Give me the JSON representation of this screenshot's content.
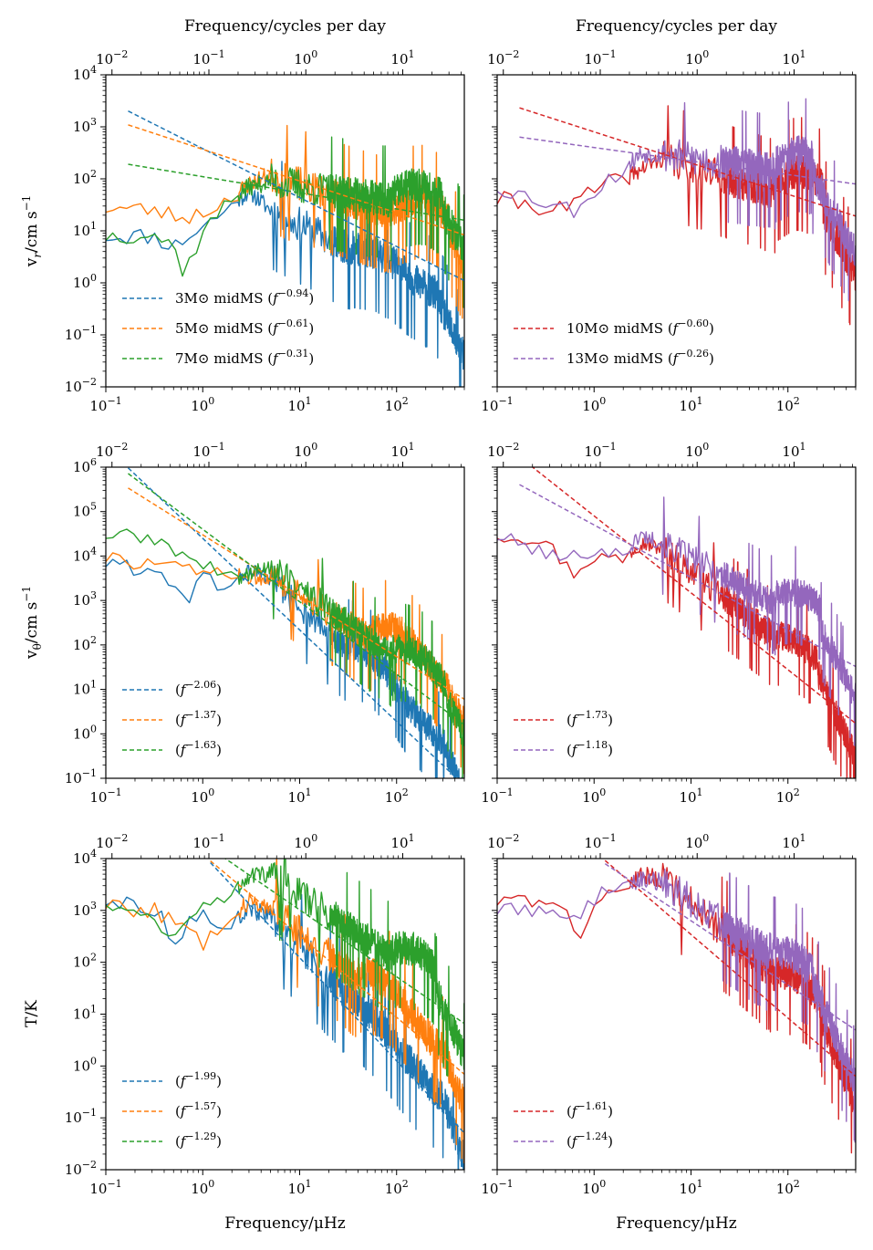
{
  "figure": {
    "top_axis_label": "Frequency/cycles per day",
    "bottom_axis_label": "Frequency/μHz",
    "row_labels": [
      {
        "main": "v",
        "sub": "r",
        "unit": "/cm s",
        "sup": "−1"
      },
      {
        "main": "v",
        "sub": "θ",
        "unit": "/cm s",
        "sup": "−1"
      },
      {
        "main": "T/K",
        "sub": "",
        "unit": "",
        "sup": ""
      }
    ],
    "bottom_ticks": [
      {
        "base": "10",
        "exp": "−1"
      },
      {
        "base": "10",
        "exp": "0"
      },
      {
        "base": "10",
        "exp": "1"
      },
      {
        "base": "10",
        "exp": "2"
      }
    ],
    "top_ticks": [
      {
        "base": "10",
        "exp": "−2"
      },
      {
        "base": "10",
        "exp": "−1"
      },
      {
        "base": "10",
        "exp": "0"
      },
      {
        "base": "10",
        "exp": "1"
      }
    ],
    "y_ticks": {
      "vr": [
        {
          "base": "10",
          "exp": "−2"
        },
        {
          "base": "10",
          "exp": "−1"
        },
        {
          "base": "10",
          "exp": "0"
        },
        {
          "base": "10",
          "exp": "1"
        },
        {
          "base": "10",
          "exp": "2"
        },
        {
          "base": "10",
          "exp": "3"
        },
        {
          "base": "10",
          "exp": "4"
        }
      ],
      "vtheta": [
        {
          "base": "10",
          "exp": "−1"
        },
        {
          "base": "10",
          "exp": "0"
        },
        {
          "base": "10",
          "exp": "1"
        },
        {
          "base": "10",
          "exp": "2"
        },
        {
          "base": "10",
          "exp": "3"
        },
        {
          "base": "10",
          "exp": "4"
        },
        {
          "base": "10",
          "exp": "5"
        },
        {
          "base": "10",
          "exp": "6"
        }
      ],
      "T": [
        {
          "base": "10",
          "exp": "−2"
        },
        {
          "base": "10",
          "exp": "−1"
        },
        {
          "base": "10",
          "exp": "0"
        },
        {
          "base": "10",
          "exp": "1"
        },
        {
          "base": "10",
          "exp": "2"
        },
        {
          "base": "10",
          "exp": "3"
        },
        {
          "base": "10",
          "exp": "4"
        }
      ]
    }
  },
  "chart_data": [
    {
      "type": "line",
      "panel": "vr-left",
      "xscale": "log",
      "yscale": "log",
      "xlim": [
        0.1,
        500
      ],
      "ylim": [
        0.01,
        10000
      ],
      "legend_position": "lower-left",
      "top_xlabel": "Frequency/cycles per day",
      "ylabel": "vr/cm s−1",
      "series": [
        {
          "name": "3M⊙ midMS",
          "color": "#1f77b4",
          "fit_exponent": "−0.94",
          "slope": -0.94,
          "fit_at_1": 380,
          "fit_from": 0.17,
          "low": [
            [
              0.1,
              8
            ],
            [
              0.3,
              8
            ],
            [
              0.5,
              5
            ],
            [
              1,
              12
            ],
            [
              2,
              30
            ],
            [
              3,
              60
            ],
            [
              5,
              25
            ]
          ],
          "peak": 0.6,
          "peak_f": 70,
          "cutoff_f": 250,
          "seed": 11
        },
        {
          "name": "5M⊙ midMS",
          "color": "#ff7f0e",
          "fit_exponent": "−0.61",
          "slope": -0.61,
          "fit_at_1": 370,
          "fit_from": 0.17,
          "low": [
            [
              0.1,
              28
            ],
            [
              0.3,
              25
            ],
            [
              0.6,
              18
            ],
            [
              1,
              22
            ],
            [
              2,
              45
            ],
            [
              3,
              80
            ],
            [
              5,
              120
            ]
          ],
          "peak": 2.0,
          "peak_f": 200,
          "cutoff_f": 350,
          "seed": 23
        },
        {
          "name": "7M⊙ midMS",
          "color": "#2ca02c",
          "fit_exponent": "−0.31",
          "slope": -0.31,
          "fit_at_1": 110,
          "fit_from": 0.17,
          "low": [
            [
              0.1,
              8
            ],
            [
              0.3,
              9
            ],
            [
              0.5,
              5
            ],
            [
              0.65,
              1.5
            ],
            [
              1,
              10
            ],
            [
              2,
              40
            ],
            [
              3,
              70
            ],
            [
              5,
              90
            ]
          ],
          "peak": 1.5,
          "peak_f": 180,
          "cutoff_f": 300,
          "seed": 37
        }
      ]
    },
    {
      "type": "line",
      "panel": "vr-right",
      "xscale": "log",
      "yscale": "log",
      "xlim": [
        0.1,
        500
      ],
      "ylim": [
        0.01,
        10000
      ],
      "legend_position": "lower-left",
      "top_xlabel": "Frequency/cycles per day",
      "series": [
        {
          "name": "10M⊙ midMS",
          "color": "#d62728",
          "fit_exponent": "−0.60",
          "slope": -0.6,
          "fit_at_1": 800,
          "fit_from": 0.17,
          "low": [
            [
              0.1,
              40
            ],
            [
              0.5,
              25
            ],
            [
              1,
              60
            ],
            [
              2,
              100
            ],
            [
              3,
              150
            ],
            [
              5,
              250
            ]
          ],
          "peak": 3.0,
          "peak_f": 150,
          "cutoff_f": 230,
          "seed": 41
        },
        {
          "name": "13M⊙ midMS",
          "color": "#9467bd",
          "fit_exponent": "−0.26",
          "slope": -0.26,
          "fit_at_1": 400,
          "fit_from": 0.17,
          "low": [
            [
              0.1,
              70
            ],
            [
              0.6,
              25
            ],
            [
              1,
              60
            ],
            [
              2,
              150
            ],
            [
              3,
              300
            ],
            [
              5,
              300
            ]
          ],
          "peak": 1.5,
          "peak_f": 150,
          "cutoff_f": 180,
          "seed": 53
        }
      ]
    },
    {
      "type": "line",
      "panel": "vtheta-left",
      "xscale": "log",
      "yscale": "log",
      "xlim": [
        0.1,
        500
      ],
      "ylim": [
        0.1,
        1000000
      ],
      "legend_position": "lower-left",
      "ylabel": "vθ/cm s−1",
      "series": [
        {
          "name": "",
          "color": "#1f77b4",
          "fit_exponent": "−2.06",
          "slope": -2.06,
          "fit_at_1": 25000,
          "fit_from": 0.17,
          "low": [
            [
              0.1,
              7000
            ],
            [
              0.4,
              4000
            ],
            [
              0.7,
              1000
            ],
            [
              1,
              3000
            ],
            [
              2,
              2000
            ],
            [
              3,
              5000
            ],
            [
              5,
              3000
            ]
          ],
          "peak": 1.5,
          "peak_f": 60,
          "cutoff_f": 300,
          "seed": 61
        },
        {
          "name": "",
          "color": "#ff7f0e",
          "fit_exponent": "−1.37",
          "slope": -1.37,
          "fit_at_1": 30000,
          "fit_from": 0.17,
          "low": [
            [
              0.1,
              9000
            ],
            [
              0.4,
              6000
            ],
            [
              1,
              4000
            ],
            [
              2,
              4000
            ],
            [
              3,
              3000
            ],
            [
              5,
              3500
            ]
          ],
          "peak": 3.0,
          "peak_f": 110,
          "cutoff_f": 330,
          "seed": 73
        },
        {
          "name": "",
          "color": "#2ca02c",
          "fit_exponent": "−1.63",
          "slope": -1.63,
          "fit_at_1": 40000,
          "fit_from": 0.17,
          "low": [
            [
              0.1,
              30000
            ],
            [
              0.3,
              25000
            ],
            [
              1,
              6000
            ],
            [
              2,
              3000
            ],
            [
              3,
              4000
            ],
            [
              5,
              6000
            ]
          ],
          "peak": 2.0,
          "peak_f": 180,
          "cutoff_f": 330,
          "seed": 89
        }
      ]
    },
    {
      "type": "line",
      "panel": "vtheta-right",
      "xscale": "log",
      "yscale": "log",
      "xlim": [
        0.1,
        500
      ],
      "ylim": [
        0.1,
        1000000
      ],
      "legend_position": "lower-left",
      "series": [
        {
          "name": "",
          "color": "#d62728",
          "fit_exponent": "−1.73",
          "slope": -1.73,
          "fit_at_1": 80000,
          "fit_from": 0.17,
          "low": [
            [
              0.1,
              30000
            ],
            [
              0.3,
              25000
            ],
            [
              0.6,
              4000
            ],
            [
              1,
              10000
            ],
            [
              2,
              8000
            ],
            [
              3,
              20000
            ],
            [
              5,
              15000
            ]
          ],
          "peak": 1.0,
          "peak_f": 150,
          "cutoff_f": 200,
          "seed": 97
        },
        {
          "name": "",
          "color": "#9467bd",
          "fit_exponent": "−1.18",
          "slope": -1.18,
          "fit_at_1": 50000,
          "fit_from": 0.17,
          "low": [
            [
              0.1,
              28000
            ],
            [
              0.5,
              8000
            ],
            [
              1,
              15000
            ],
            [
              2,
              10000
            ],
            [
              3,
              30000
            ],
            [
              5,
              20000
            ]
          ],
          "peak": 2.5,
          "peak_f": 150,
          "cutoff_f": 220,
          "seed": 101
        }
      ]
    },
    {
      "type": "line",
      "panel": "T-left",
      "xscale": "log",
      "yscale": "log",
      "xlim": [
        0.1,
        500
      ],
      "ylim": [
        0.01,
        10000
      ],
      "legend_position": "lower-left",
      "ylabel": "T/K",
      "xlabel": "Frequency/μHz",
      "series": [
        {
          "name": "",
          "color": "#1f77b4",
          "fit_exponent": "−1.99",
          "slope": -1.99,
          "fit_at_1": 12000,
          "fit_from": 1.2,
          "low": [
            [
              0.1,
              1500
            ],
            [
              0.3,
              1200
            ],
            [
              0.5,
              300
            ],
            [
              1,
              800
            ],
            [
              2,
              600
            ],
            [
              3,
              1000
            ],
            [
              5,
              800
            ]
          ],
          "peak": 0.4,
          "peak_f": 60,
          "cutoff_f": 300,
          "seed": 113
        },
        {
          "name": "",
          "color": "#ff7f0e",
          "fit_exponent": "−1.57",
          "slope": -1.57,
          "fit_at_1": 12000,
          "fit_from": 1.2,
          "low": [
            [
              0.1,
              1300
            ],
            [
              0.3,
              1000
            ],
            [
              0.6,
              500
            ],
            [
              1,
              250
            ],
            [
              2,
              800
            ],
            [
              3,
              1500
            ],
            [
              5,
              1200
            ]
          ],
          "peak": 1.5,
          "peak_f": 80,
          "cutoff_f": 300,
          "seed": 127
        },
        {
          "name": "",
          "color": "#2ca02c",
          "fit_exponent": "−1.29",
          "slope": -1.29,
          "fit_at_1": 20000,
          "fit_from": 1.2,
          "low": [
            [
              0.1,
              1500
            ],
            [
              0.5,
              400
            ],
            [
              1,
              1000
            ],
            [
              2,
              2000
            ],
            [
              3,
              5000
            ],
            [
              5,
              5000
            ]
          ],
          "peak": 2.0,
          "peak_f": 180,
          "cutoff_f": 250,
          "seed": 131
        }
      ]
    },
    {
      "type": "line",
      "panel": "T-right",
      "xscale": "log",
      "yscale": "log",
      "xlim": [
        0.1,
        500
      ],
      "ylim": [
        0.01,
        10000
      ],
      "legend_position": "lower-left",
      "xlabel": "Frequency/μHz",
      "series": [
        {
          "name": "",
          "color": "#d62728",
          "fit_exponent": "−1.61",
          "slope": -1.61,
          "fit_at_1": 14000,
          "fit_from": 1.3,
          "low": [
            [
              0.1,
              1500
            ],
            [
              0.4,
              1800
            ],
            [
              0.7,
              250
            ],
            [
              1,
              1500
            ],
            [
              2,
              3000
            ],
            [
              3,
              5000
            ],
            [
              5,
              4000
            ]
          ],
          "peak": 1.2,
          "peak_f": 150,
          "cutoff_f": 220,
          "seed": 137
        },
        {
          "name": "",
          "color": "#9467bd",
          "fit_exponent": "−1.24",
          "slope": -1.24,
          "fit_at_1": 11000,
          "fit_from": 1.3,
          "low": [
            [
              0.1,
              1000
            ],
            [
              0.4,
              1200
            ],
            [
              0.6,
              600
            ],
            [
              1,
              1800
            ],
            [
              2,
              2500
            ],
            [
              3,
              4000
            ],
            [
              5,
              3500
            ]
          ],
          "peak": 0.8,
          "peak_f": 130,
          "cutoff_f": 180,
          "seed": 149
        }
      ]
    }
  ]
}
